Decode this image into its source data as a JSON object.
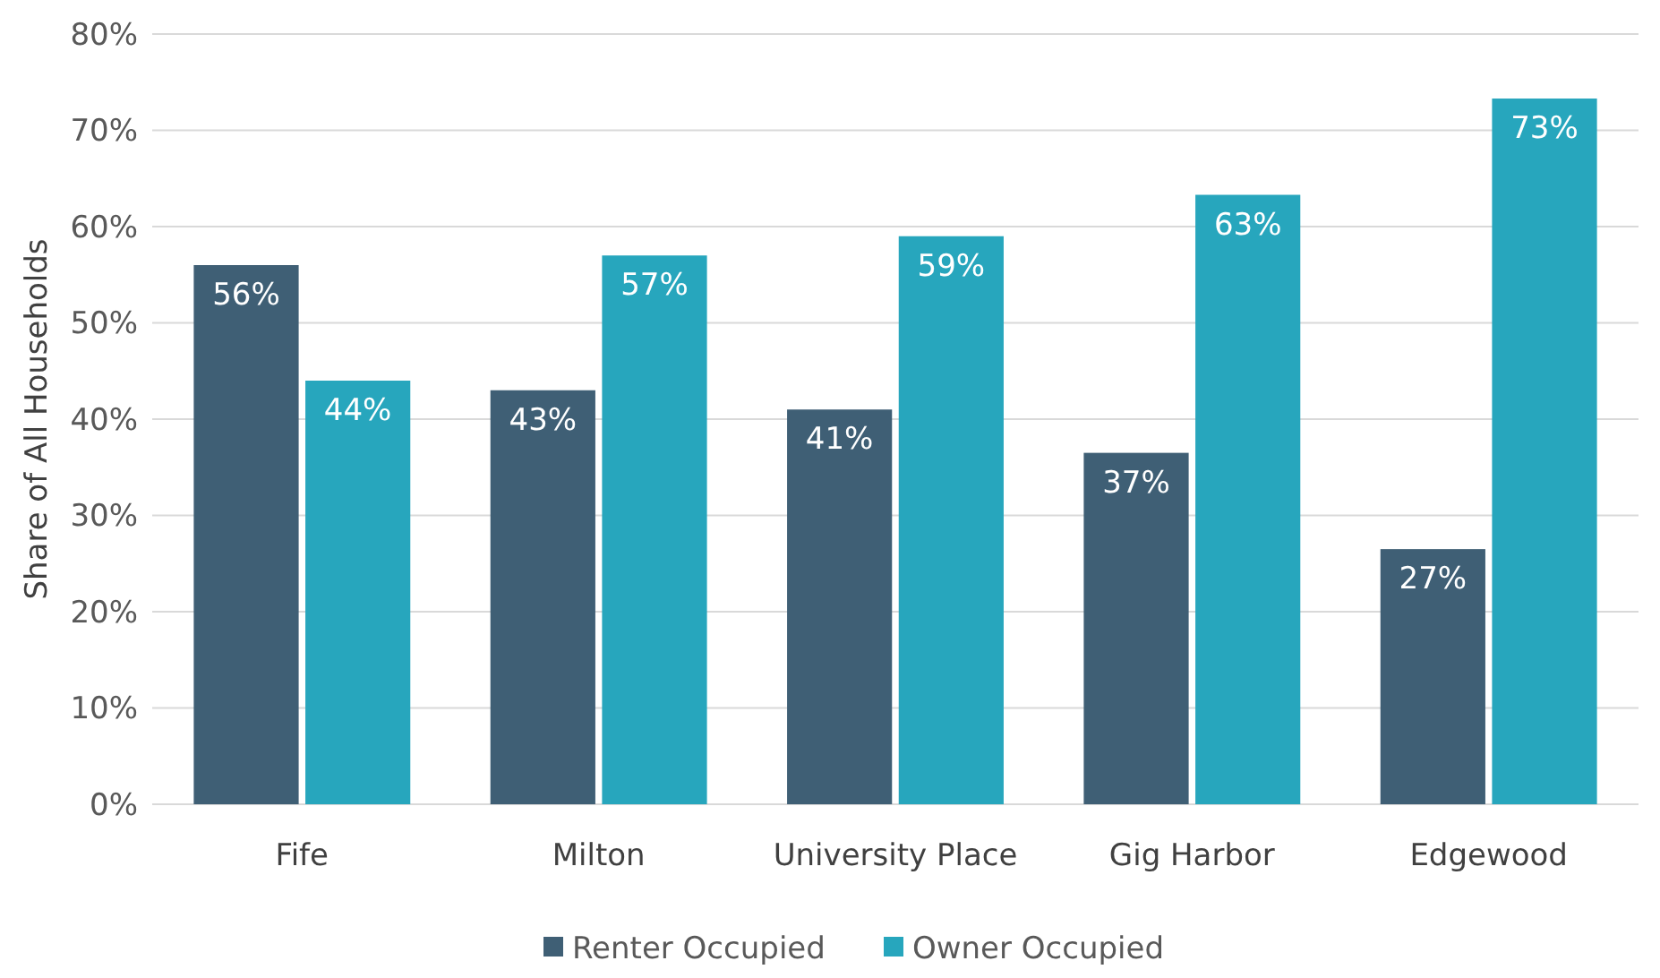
{
  "chart_data": {
    "type": "bar",
    "ylabel": "Share of All Households",
    "categories": [
      "Fife",
      "Milton",
      "University Place",
      "Gig Harbor",
      "Edgewood"
    ],
    "series": [
      {
        "name": "Renter Occupied",
        "color": "#3f5f75",
        "values": [
          56,
          43,
          41,
          36.5,
          26.5
        ],
        "value_labels": [
          "56%",
          "43%",
          "41%",
          "37%",
          "27%"
        ]
      },
      {
        "name": "Owner Occupied",
        "color": "#27a6bd",
        "values": [
          44,
          57,
          59,
          63.3,
          73.3
        ],
        "value_labels": [
          "44%",
          "57%",
          "59%",
          "63%",
          "73%"
        ]
      }
    ],
    "ylim": [
      0,
      80
    ],
    "yticks": [
      {
        "value": 0,
        "label": "0%"
      },
      {
        "value": 10,
        "label": "10%"
      },
      {
        "value": 20,
        "label": "20%"
      },
      {
        "value": 30,
        "label": "30%"
      },
      {
        "value": 40,
        "label": "40%"
      },
      {
        "value": 50,
        "label": "50%"
      },
      {
        "value": 60,
        "label": "60%"
      },
      {
        "value": 70,
        "label": "70%"
      },
      {
        "value": 80,
        "label": "80%"
      }
    ],
    "grid": "y",
    "legend": "bottom"
  }
}
